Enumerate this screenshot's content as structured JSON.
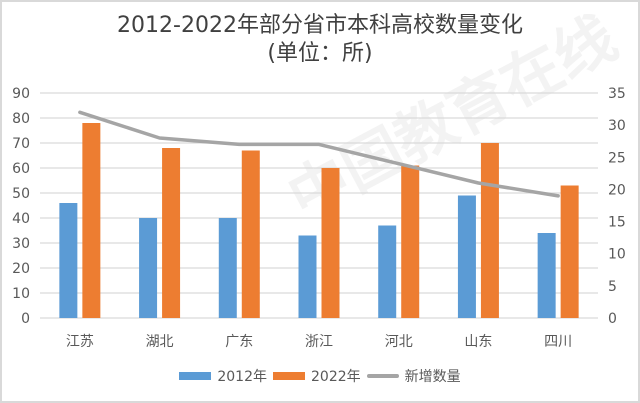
{
  "chart_data": {
    "type": "bar",
    "title": "2012-2022年部分省市本科高校数量变化",
    "subtitle": "(单位：所)",
    "categories": [
      "江苏",
      "湖北",
      "广东",
      "浙江",
      "河北",
      "山东",
      "四川"
    ],
    "series": [
      {
        "name": "2012年",
        "type": "bar",
        "axis": "left",
        "color": "#5b9bd5",
        "values": [
          46,
          40,
          40,
          33,
          37,
          49,
          34
        ]
      },
      {
        "name": "2022年",
        "type": "bar",
        "axis": "left",
        "color": "#ed7d31",
        "values": [
          78,
          68,
          67,
          60,
          61,
          70,
          53
        ]
      },
      {
        "name": "新增数量",
        "type": "line",
        "axis": "right",
        "color": "#a5a5a5",
        "values": [
          32,
          28,
          27,
          27,
          24,
          21,
          19
        ]
      }
    ],
    "left_axis": {
      "ylim": [
        0,
        90
      ],
      "ticks": [
        0,
        10,
        20,
        30,
        40,
        50,
        60,
        70,
        80,
        90
      ]
    },
    "right_axis": {
      "ylim": [
        0,
        35
      ],
      "ticks": [
        0,
        5,
        10,
        15,
        20,
        25,
        30,
        35
      ]
    },
    "grid": true,
    "legend_position": "bottom",
    "xlabel": "",
    "ylabel": ""
  },
  "title_line1": "2012-2022年部分省市本科高校数量变化",
  "title_line2": "(单位：所)",
  "legend": {
    "s1": "2012年",
    "s2": "2022年",
    "s3": "新增数量"
  },
  "watermark": "中国教育在线"
}
